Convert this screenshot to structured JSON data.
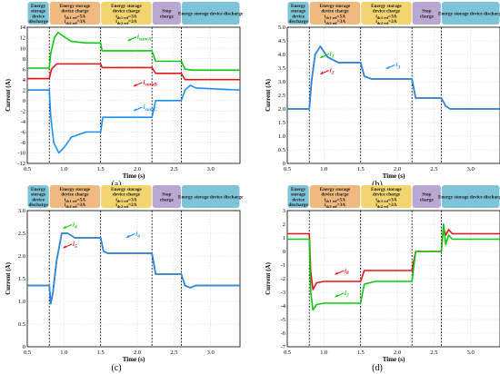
{
  "phase_labels": [
    {
      "lines": [
        "Energy",
        "storage",
        "device",
        "discharge"
      ],
      "color": "#7ec4d8"
    },
    {
      "lines": [
        "Energy storage",
        "device charge",
        "i_dc1_ref=5A",
        "i_dc2_ref=3A"
      ],
      "color": "#f0b97f"
    },
    {
      "lines": [
        "Energy storage",
        "device charge",
        "i_dc1_ref=3A",
        "i_dc2_ref=2A"
      ],
      "color": "#f2d56e"
    },
    {
      "lines": [
        "Stop",
        "charge"
      ],
      "color": "#b9a9d2"
    },
    {
      "lines": [
        "Energy storage device discharge"
      ],
      "color": "#7ec4d8"
    }
  ],
  "colors": {
    "green": "#11c711",
    "red": "#e8141b",
    "blue": "#1f8ef1"
  },
  "chart_data": [
    {
      "panel_label": "(a)",
      "type": "line",
      "xlabel": "Time (s)",
      "ylabel": "Current (A)",
      "xlim": [
        0.5,
        3.4
      ],
      "ylim": [
        -12,
        14
      ],
      "xticks": [
        "0.5",
        "1.0",
        "1.5",
        "2.0",
        "2.5",
        "3.0"
      ],
      "yticks": [
        "-12",
        "-10",
        "-8",
        "-6",
        "-4",
        "-2",
        "0",
        "2",
        "4",
        "6",
        "8",
        "10",
        "12",
        "14"
      ],
      "phase_boundaries": [
        0.8,
        1.5,
        2.2,
        2.6
      ],
      "series": [
        {
          "name": "i_sumA",
          "color": "green",
          "points": [
            [
              0.5,
              6.2
            ],
            [
              0.8,
              6.2
            ],
            [
              0.82,
              9
            ],
            [
              0.87,
              12
            ],
            [
              0.92,
              13
            ],
            [
              1.0,
              12.2
            ],
            [
              1.1,
              11.3
            ],
            [
              1.3,
              11
            ],
            [
              1.5,
              11
            ],
            [
              1.52,
              9.5
            ],
            [
              1.6,
              9.5
            ],
            [
              2.2,
              9.5
            ],
            [
              2.25,
              7.5
            ],
            [
              2.6,
              7.5
            ],
            [
              2.65,
              6
            ],
            [
              2.75,
              5.8
            ],
            [
              3.4,
              5.8
            ]
          ]
        },
        {
          "name": "i_sumB",
          "color": "red",
          "points": [
            [
              0.5,
              4.2
            ],
            [
              0.8,
              4.2
            ],
            [
              0.83,
              6
            ],
            [
              0.9,
              7
            ],
            [
              1.1,
              7
            ],
            [
              1.5,
              7
            ],
            [
              1.52,
              6.3
            ],
            [
              2.2,
              6.3
            ],
            [
              2.25,
              5.2
            ],
            [
              2.6,
              5.2
            ],
            [
              2.65,
              4
            ],
            [
              3.4,
              4
            ]
          ]
        },
        {
          "name": "i_sumC",
          "color": "blue",
          "points": [
            [
              0.5,
              2
            ],
            [
              0.8,
              2
            ],
            [
              0.82,
              -3
            ],
            [
              0.86,
              -8
            ],
            [
              0.93,
              -10
            ],
            [
              1.0,
              -9
            ],
            [
              1.1,
              -7
            ],
            [
              1.3,
              -6
            ],
            [
              1.5,
              -6
            ],
            [
              1.53,
              -3.2
            ],
            [
              2.2,
              -3.2
            ],
            [
              2.25,
              0
            ],
            [
              2.6,
              0
            ],
            [
              2.65,
              2
            ],
            [
              2.72,
              2.9
            ],
            [
              2.8,
              2.4
            ],
            [
              3.4,
              2
            ]
          ]
        }
      ],
      "annotations": [
        {
          "text": "i_sumA",
          "x": 2.0,
          "y": 11.8,
          "color": "green"
        },
        {
          "text": "i_sumB",
          "x": 2.08,
          "y": 3.1,
          "color": "red"
        },
        {
          "text": "i_sumC",
          "x": 2.08,
          "y": -1.6,
          "color": "blue"
        }
      ]
    },
    {
      "panel_label": "(b)",
      "type": "line",
      "xlabel": "Time (s)",
      "ylabel": "Current (A)",
      "xlim": [
        0.5,
        3.4
      ],
      "ylim": [
        0,
        5
      ],
      "xticks": [
        "0.5",
        "1.0",
        "1.5",
        "2.0",
        "2.5",
        "3.0"
      ],
      "yticks": [
        "0",
        "0.5",
        "1.0",
        "1.5",
        "2.0",
        "2.5",
        "3.0",
        "3.5",
        "4.0",
        "4.5",
        "5.0"
      ],
      "phase_boundaries": [
        0.8,
        1.5,
        2.2,
        2.6
      ],
      "series": [
        {
          "name": "i_1",
          "color": "green",
          "points": [
            [
              0.5,
              2
            ],
            [
              0.8,
              2
            ],
            [
              0.83,
              3
            ],
            [
              0.88,
              4
            ],
            [
              0.95,
              4.3
            ],
            [
              1.05,
              3.9
            ],
            [
              1.2,
              3.7
            ],
            [
              1.5,
              3.7
            ],
            [
              1.55,
              3.2
            ],
            [
              1.65,
              3.1
            ],
            [
              2.2,
              3.1
            ],
            [
              2.25,
              2.4
            ],
            [
              2.6,
              2.4
            ],
            [
              2.66,
              2.1
            ],
            [
              2.72,
              2.0
            ],
            [
              3.4,
              2.0
            ]
          ]
        },
        {
          "name": "i_2",
          "color": "red",
          "points": [
            [
              0.5,
              2
            ],
            [
              0.8,
              2
            ],
            [
              0.83,
              3
            ],
            [
              0.88,
              4
            ],
            [
              0.95,
              4.3
            ],
            [
              1.05,
              3.9
            ],
            [
              1.2,
              3.7
            ],
            [
              1.5,
              3.7
            ],
            [
              1.55,
              3.2
            ],
            [
              1.65,
              3.1
            ],
            [
              2.2,
              3.1
            ],
            [
              2.25,
              2.4
            ],
            [
              2.6,
              2.4
            ],
            [
              2.66,
              2.1
            ],
            [
              2.72,
              2.0
            ],
            [
              3.4,
              2.0
            ]
          ]
        },
        {
          "name": "i_3",
          "color": "blue",
          "points": [
            [
              0.5,
              2
            ],
            [
              0.8,
              2
            ],
            [
              0.83,
              3
            ],
            [
              0.88,
              4
            ],
            [
              0.95,
              4.3
            ],
            [
              1.05,
              3.9
            ],
            [
              1.2,
              3.7
            ],
            [
              1.5,
              3.7
            ],
            [
              1.55,
              3.2
            ],
            [
              1.65,
              3.1
            ],
            [
              2.2,
              3.1
            ],
            [
              2.25,
              2.4
            ],
            [
              2.6,
              2.4
            ],
            [
              2.66,
              2.1
            ],
            [
              2.72,
              2.0
            ],
            [
              3.4,
              2.0
            ]
          ]
        }
      ],
      "annotations": [
        {
          "text": "i_1",
          "x": 1.08,
          "y": 3.95,
          "color": "green"
        },
        {
          "text": "i_2",
          "x": 1.08,
          "y": 3.35,
          "color": "red"
        },
        {
          "text": "i_3",
          "x": 1.98,
          "y": 3.55,
          "color": "blue"
        }
      ]
    },
    {
      "panel_label": "(c)",
      "type": "line",
      "xlabel": "Time (s)",
      "ylabel": "Current (A)",
      "xlim": [
        0.5,
        3.4
      ],
      "ylim": [
        0,
        3
      ],
      "xticks": [
        "0.5",
        "1.0",
        "1.5",
        "2.0",
        "2.5",
        "3.0"
      ],
      "yticks": [
        "0",
        "0.5",
        "1.0",
        "1.5",
        "2.0",
        "2.5",
        "3.0"
      ],
      "phase_boundaries": [
        0.8,
        1.5,
        2.2,
        2.6
      ],
      "series": [
        {
          "name": "i_4",
          "color": "green",
          "points": [
            [
              0.5,
              1.35
            ],
            [
              0.8,
              1.35
            ],
            [
              0.82,
              0.95
            ],
            [
              0.85,
              1.2
            ],
            [
              0.9,
              1.9
            ],
            [
              0.97,
              2.5
            ],
            [
              1.05,
              2.5
            ],
            [
              1.15,
              2.4
            ],
            [
              1.5,
              2.4
            ],
            [
              1.54,
              2.1
            ],
            [
              1.6,
              2.06
            ],
            [
              2.2,
              2.06
            ],
            [
              2.25,
              1.6
            ],
            [
              2.6,
              1.6
            ],
            [
              2.65,
              1.35
            ],
            [
              2.72,
              1.3
            ],
            [
              2.8,
              1.35
            ],
            [
              3.4,
              1.35
            ]
          ]
        },
        {
          "name": "i_5",
          "color": "red",
          "points": [
            [
              0.5,
              1.35
            ],
            [
              0.8,
              1.35
            ],
            [
              0.82,
              0.95
            ],
            [
              0.85,
              1.2
            ],
            [
              0.9,
              1.9
            ],
            [
              0.97,
              2.5
            ],
            [
              1.05,
              2.5
            ],
            [
              1.15,
              2.4
            ],
            [
              1.5,
              2.4
            ],
            [
              1.54,
              2.1
            ],
            [
              1.6,
              2.06
            ],
            [
              2.2,
              2.06
            ],
            [
              2.25,
              1.6
            ],
            [
              2.6,
              1.6
            ],
            [
              2.65,
              1.35
            ],
            [
              2.72,
              1.3
            ],
            [
              2.8,
              1.35
            ],
            [
              3.4,
              1.35
            ]
          ]
        },
        {
          "name": "i_6",
          "color": "blue",
          "points": [
            [
              0.5,
              1.35
            ],
            [
              0.8,
              1.35
            ],
            [
              0.82,
              0.95
            ],
            [
              0.85,
              1.2
            ],
            [
              0.9,
              1.9
            ],
            [
              0.97,
              2.5
            ],
            [
              1.05,
              2.5
            ],
            [
              1.15,
              2.4
            ],
            [
              1.5,
              2.4
            ],
            [
              1.54,
              2.1
            ],
            [
              1.6,
              2.06
            ],
            [
              2.2,
              2.06
            ],
            [
              2.25,
              1.6
            ],
            [
              2.6,
              1.6
            ],
            [
              2.65,
              1.35
            ],
            [
              2.72,
              1.3
            ],
            [
              2.8,
              1.35
            ],
            [
              3.4,
              1.35
            ]
          ]
        }
      ],
      "annotations": [
        {
          "text": "i_4",
          "x": 1.12,
          "y": 2.65,
          "color": "green"
        },
        {
          "text": "i_5",
          "x": 1.12,
          "y": 2.22,
          "color": "red"
        },
        {
          "text": "i_6",
          "x": 1.98,
          "y": 2.45,
          "color": "blue"
        }
      ]
    },
    {
      "panel_label": "(d)",
      "type": "line",
      "xlabel": "Time (s)",
      "ylabel": "Current (A)",
      "xlim": [
        0.5,
        3.4
      ],
      "ylim": [
        -7,
        3
      ],
      "xticks": [
        "0.5",
        "1.0",
        "1.5",
        "2.0",
        "2.5",
        "3.0"
      ],
      "yticks": [
        "-7",
        "-6",
        "-5",
        "-4",
        "-3",
        "-2",
        "-1",
        "0",
        "1",
        "2",
        "3"
      ],
      "phase_boundaries": [
        0.8,
        1.5,
        2.2,
        2.6
      ],
      "series": [
        {
          "name": "i_8",
          "color": "red",
          "points": [
            [
              0.5,
              1.3
            ],
            [
              0.8,
              1.3
            ],
            [
              0.82,
              -1.5
            ],
            [
              0.85,
              -2.8
            ],
            [
              0.9,
              -2.3
            ],
            [
              1.0,
              -2.2
            ],
            [
              1.5,
              -2.2
            ],
            [
              1.55,
              -1.4
            ],
            [
              2.2,
              -1.4
            ],
            [
              2.25,
              0
            ],
            [
              2.6,
              0
            ],
            [
              2.63,
              1.8
            ],
            [
              2.66,
              1.2
            ],
            [
              2.7,
              1.6
            ],
            [
              2.75,
              1.3
            ],
            [
              3.4,
              1.3
            ]
          ]
        },
        {
          "name": "i_7",
          "color": "green",
          "points": [
            [
              0.5,
              0.9
            ],
            [
              0.8,
              0.9
            ],
            [
              0.82,
              -3
            ],
            [
              0.85,
              -4.3
            ],
            [
              0.9,
              -3.9
            ],
            [
              1.0,
              -3.8
            ],
            [
              1.5,
              -3.8
            ],
            [
              1.55,
              -2.4
            ],
            [
              1.7,
              -2.2
            ],
            [
              2.2,
              -2.2
            ],
            [
              2.25,
              0
            ],
            [
              2.6,
              0
            ],
            [
              2.63,
              2.0
            ],
            [
              2.66,
              0.5
            ],
            [
              2.7,
              1.2
            ],
            [
              2.75,
              0.9
            ],
            [
              3.4,
              0.9
            ]
          ]
        }
      ],
      "annotations": [
        {
          "text": "i_8",
          "x": 1.28,
          "y": -1.55,
          "color": "red"
        },
        {
          "text": "i_7",
          "x": 1.28,
          "y": -3.2,
          "color": "green"
        }
      ]
    }
  ]
}
